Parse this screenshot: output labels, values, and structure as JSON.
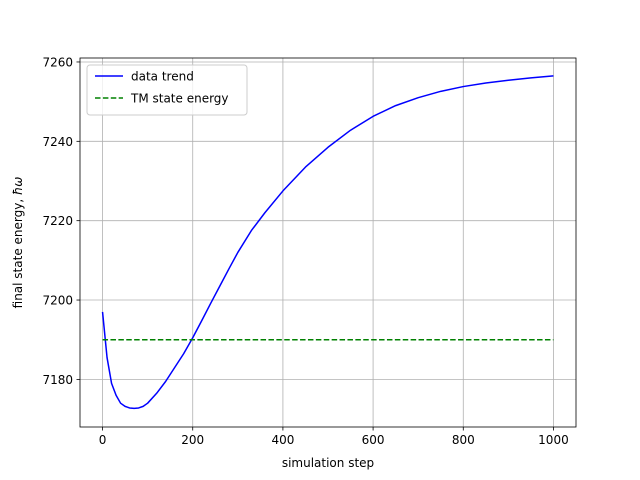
{
  "chart_data": {
    "type": "line",
    "title": "",
    "xlabel": "simulation step",
    "ylabel": "final state energy, ",
    "ylabel_symbol": "ħω",
    "xlim": [
      -50,
      1050
    ],
    "ylim": [
      7168,
      7261
    ],
    "x_ticks": [
      0,
      200,
      400,
      600,
      800,
      1000
    ],
    "y_ticks": [
      7180,
      7200,
      7220,
      7240,
      7260
    ],
    "grid": true,
    "legend_position": "top-left",
    "series": [
      {
        "name": "data trend",
        "color": "#0000ff",
        "style": "solid",
        "x": [
          0,
          10,
          20,
          30,
          40,
          50,
          60,
          70,
          80,
          90,
          100,
          120,
          140,
          160,
          180,
          200,
          220,
          240,
          260,
          280,
          300,
          330,
          360,
          400,
          450,
          500,
          550,
          600,
          650,
          700,
          750,
          800,
          850,
          900,
          950,
          1000
        ],
        "y": [
          7197,
          7185.5,
          7179,
          7176,
          7174,
          7173.2,
          7172.8,
          7172.7,
          7172.8,
          7173.2,
          7174,
          7176.5,
          7179.5,
          7183,
          7186.5,
          7190.5,
          7194.8,
          7199.2,
          7203.5,
          7207.8,
          7212,
          7217.5,
          7222,
          7227.5,
          7233.5,
          7238.5,
          7242.8,
          7246.3,
          7249,
          7251,
          7252.6,
          7253.8,
          7254.7,
          7255.4,
          7256,
          7256.5
        ]
      },
      {
        "name": "TM state energy",
        "color": "#008000",
        "style": "dashed",
        "x": [
          0,
          1000
        ],
        "y": [
          7190,
          7190
        ]
      }
    ]
  }
}
